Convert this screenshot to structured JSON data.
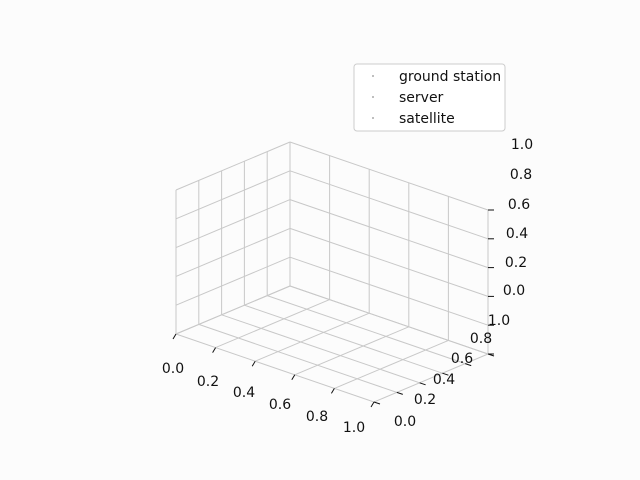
{
  "chart_data": {
    "type": "scatter",
    "projection": "3d",
    "title": "",
    "xlabel": "",
    "ylabel": "",
    "zlabel": "",
    "xlim": [
      0.0,
      1.0
    ],
    "ylim": [
      0.0,
      1.0
    ],
    "zlim": [
      0.0,
      1.0
    ],
    "x_ticks": [
      "0.0",
      "0.2",
      "0.4",
      "0.6",
      "0.8",
      "1.0"
    ],
    "y_ticks": [
      "0.0",
      "0.2",
      "0.4",
      "0.6",
      "0.8",
      "1.0"
    ],
    "z_ticks": [
      "0.0",
      "0.2",
      "0.4",
      "0.6",
      "0.8",
      "1.0"
    ],
    "grid": true,
    "legend": {
      "position": "top-right",
      "entries": [
        "ground station",
        "server",
        "satellite"
      ]
    },
    "series": [
      {
        "name": "ground station",
        "marker": "point",
        "color": "#1f1f1f",
        "points": []
      },
      {
        "name": "server",
        "marker": "point",
        "color": "#1f1f1f",
        "points": []
      },
      {
        "name": "satellite",
        "marker": "point",
        "color": "#1f1f1f",
        "points": []
      }
    ],
    "colors": {
      "background": "#fcfcfc",
      "pane": "#fcfcfc",
      "grid": "#c8c8c8",
      "axis": "#111111",
      "legend_border": "#cccccc"
    }
  }
}
